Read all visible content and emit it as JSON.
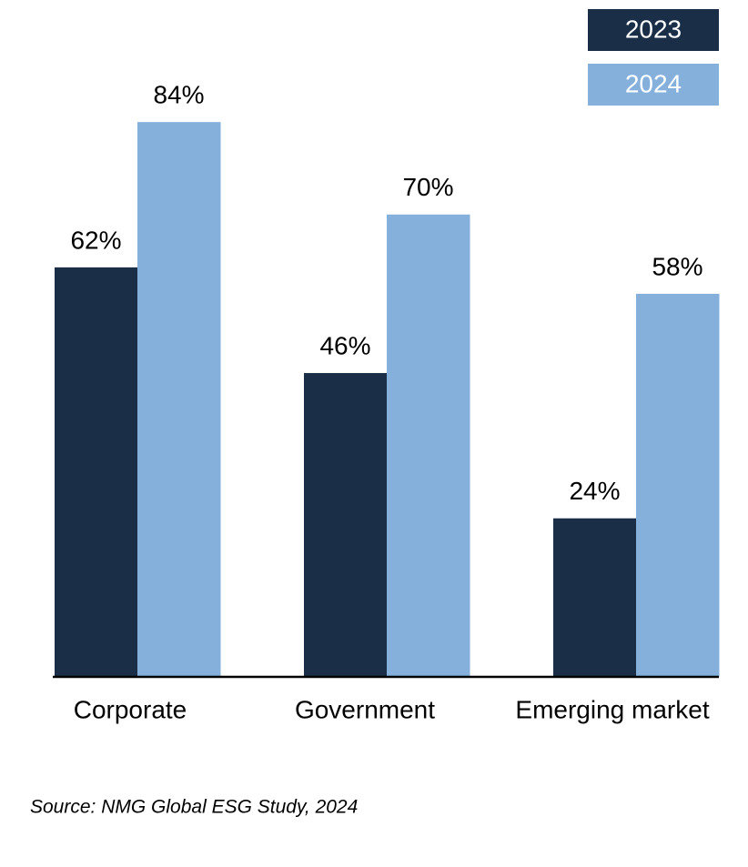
{
  "chart_data": {
    "type": "bar",
    "categories": [
      "Corporate",
      "Government",
      "Emerging market"
    ],
    "series": [
      {
        "name": "2023",
        "color": "#1a2e48",
        "values": [
          62,
          46,
          24
        ],
        "value_labels": [
          "62%",
          "46%",
          "24%"
        ]
      },
      {
        "name": "2024",
        "color": "#86b0dc",
        "values": [
          84,
          70,
          58
        ],
        "value_labels": [
          "84%",
          "70%",
          "58%"
        ]
      }
    ],
    "legend": "top-right",
    "source": "Source: NMG Global ESG Study, 2024"
  }
}
